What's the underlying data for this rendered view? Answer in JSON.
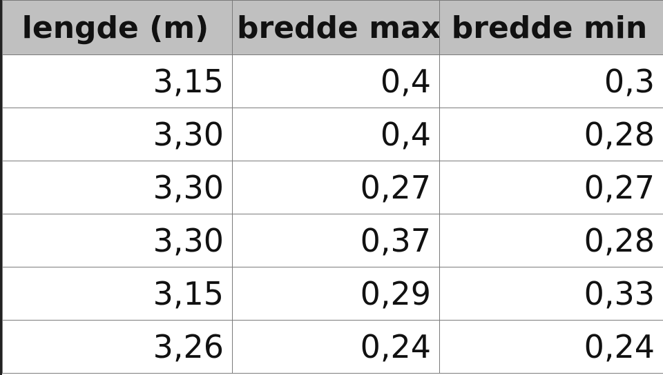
{
  "table": {
    "header": [
      "lengde (m)",
      "bredde max",
      "bredde min"
    ],
    "rows": [
      [
        "3,15",
        "0,4",
        "0,3"
      ],
      [
        "3,30",
        "0,4",
        "0,28"
      ],
      [
        "3,30",
        "0,27",
        "0,27"
      ],
      [
        "3,30",
        "0,37",
        "0,28"
      ],
      [
        "3,15",
        "0,29",
        "0,33"
      ],
      [
        "3,26",
        "0,24",
        "0,24"
      ]
    ]
  }
}
